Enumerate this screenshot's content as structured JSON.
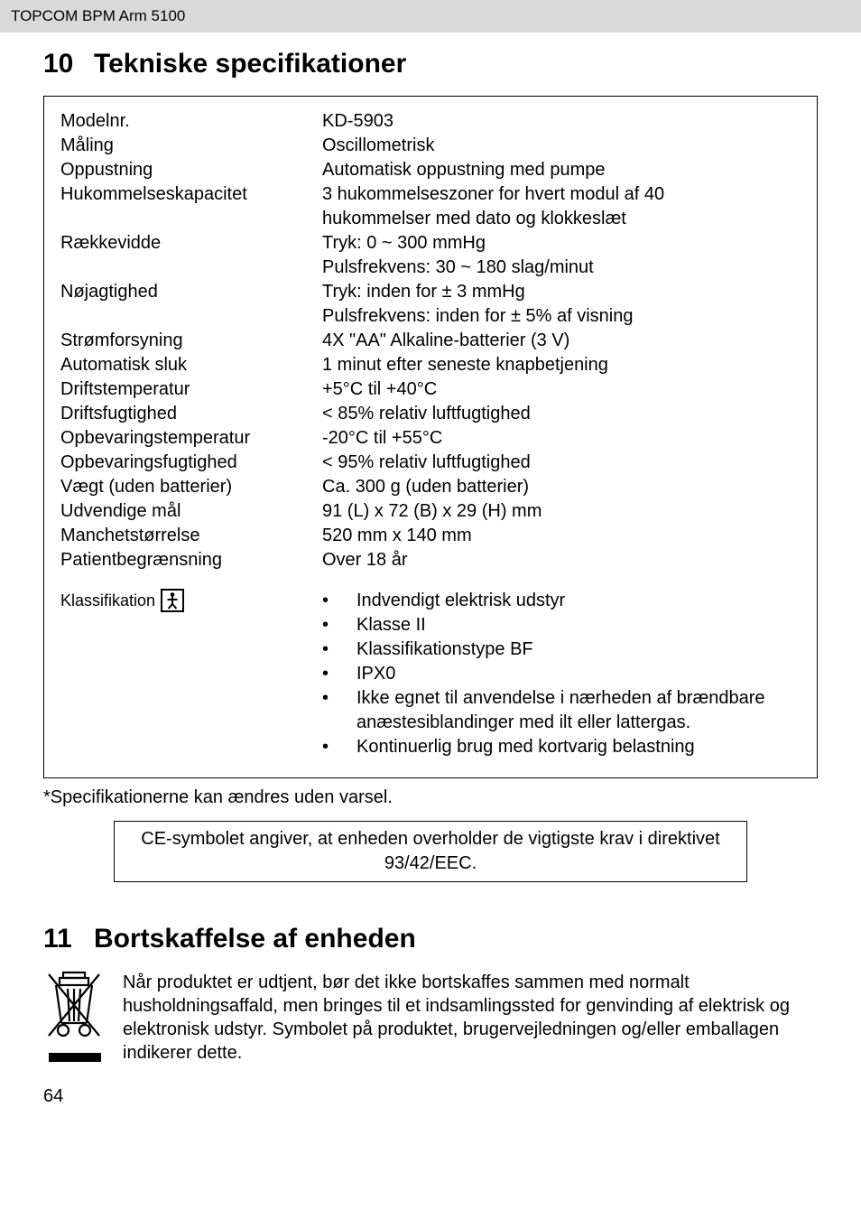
{
  "header": "TOPCOM BPM Arm 5100",
  "section10": {
    "number": "10",
    "title": "Tekniske specifikationer",
    "rows": [
      {
        "label": "Modelnr.",
        "value": "KD-5903"
      },
      {
        "label": "Måling",
        "value": "Oscillometrisk"
      },
      {
        "label": "Oppustning",
        "value": "Automatisk oppustning med pumpe"
      },
      {
        "label": "Hukommelseskapacitet",
        "value": "3 hukommelseszoner for hvert modul af 40"
      },
      {
        "label": "",
        "value": "hukommelser med dato og klokkeslæt",
        "cont": true
      },
      {
        "label": "Rækkevidde",
        "value": "Tryk: 0 ~ 300 mmHg"
      },
      {
        "label": "",
        "value": "Pulsfrekvens: 30 ~ 180 slag/minut",
        "cont": true
      },
      {
        "label": "Nøjagtighed",
        "value": "Tryk: inden for ± 3 mmHg"
      },
      {
        "label": "",
        "value": "Pulsfrekvens: inden for ± 5% af visning",
        "cont": true
      },
      {
        "label": "Strømforsyning",
        "value": "4X \"AA\" Alkaline-batterier (3 V)"
      },
      {
        "label": "Automatisk sluk",
        "value": "1 minut efter seneste knapbetjening"
      },
      {
        "label": "Driftstemperatur",
        "value": "+5°C til +40°C"
      },
      {
        "label": "Driftsfugtighed",
        "value": "< 85% relativ luftfugtighed"
      },
      {
        "label": "Opbevaringstemperatur",
        "value": "-20°C til +55°C"
      },
      {
        "label": "Opbevaringsfugtighed",
        "value": "< 95% relativ luftfugtighed"
      },
      {
        "label": "Vægt (uden batterier)",
        "value": "Ca. 300 g (uden batterier)"
      },
      {
        "label": "Udvendige mål",
        "value": "91 (L) x 72 (B) x 29 (H) mm"
      },
      {
        "label": "Manchetstørrelse",
        "value": "520 mm x 140 mm"
      },
      {
        "label": "Patientbegrænsning",
        "value": "Over 18 år"
      }
    ],
    "classification_label": "Klassifikation",
    "classification_items": [
      "Indvendigt elektrisk udstyr",
      "Klasse II",
      "Klassifikationstype BF",
      "IPX0",
      "Ikke egnet til anvendelse i nærheden af brændbare anæstesiblandinger med ilt eller lattergas.",
      "Kontinuerlig brug med kortvarig belastning"
    ],
    "footnote": "*Specifikationerne kan ændres uden varsel.",
    "ce_text": "CE-symbolet angiver, at enheden overholder de vigtigste krav i direktivet 93/42/EEC."
  },
  "section11": {
    "number": "11",
    "title": "Bortskaffelse af enheden",
    "body": "Når produktet er udtjent, bør det ikke bortskaffes sammen med normalt husholdningsaffald, men bringes til et indsamlingssted for genvinding af elektrisk og elektronisk udstyr. Symbolet på produktet, brugervejledningen og/eller emballagen indikerer dette."
  },
  "page_number": "64"
}
